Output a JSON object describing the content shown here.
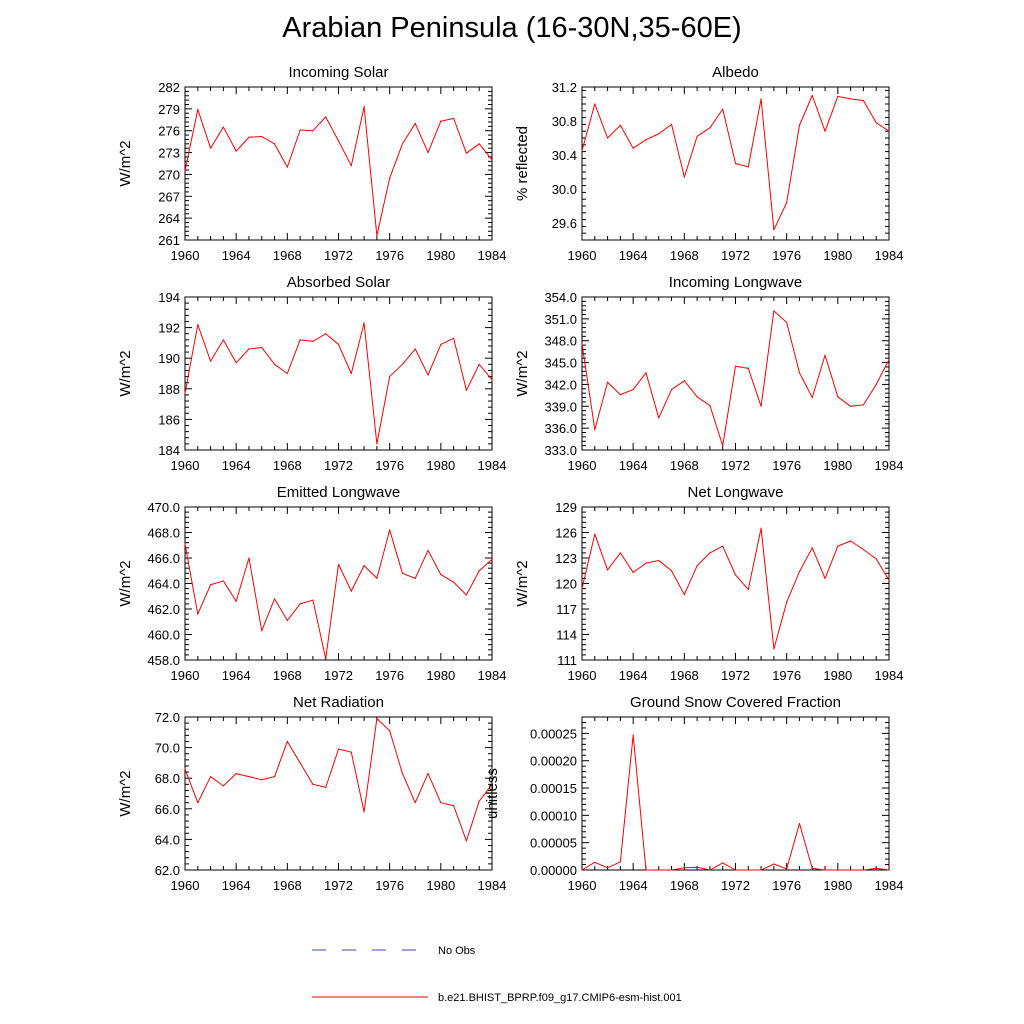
{
  "title": "Arabian Peninsula (16-30N,35-60E)",
  "legend": {
    "items": [
      {
        "label": "No Obs",
        "style": "dashed",
        "color": "#4040c0"
      },
      {
        "label": "b.e21.BHIST_BPRP.f09_g17.CMIP6-esm-hist.001",
        "style": "solid",
        "color": "#ff0000"
      }
    ]
  },
  "chart_data": [
    {
      "type": "line",
      "title": "Incoming Solar",
      "ylabel": "W/m^2",
      "x": [
        1960,
        1961,
        1962,
        1963,
        1964,
        1965,
        1966,
        1967,
        1968,
        1969,
        1970,
        1971,
        1972,
        1973,
        1974,
        1975,
        1976,
        1977,
        1978,
        1979,
        1980,
        1981,
        1982,
        1983,
        1984
      ],
      "xlim": [
        1960,
        1984
      ],
      "xticks": [
        "1960",
        "1964",
        "1968",
        "1972",
        "1976",
        "1980",
        "1984"
      ],
      "ylim": [
        261,
        282
      ],
      "yticks": [
        "261",
        "264",
        "267",
        "270",
        "273",
        "276",
        "279",
        "282"
      ],
      "series": [
        {
          "color": "#ff0000",
          "values": [
            270.5,
            278.9,
            273.6,
            276.5,
            273.2,
            275.1,
            275.2,
            274.2,
            271.0,
            276.1,
            276.0,
            277.9,
            274.6,
            271.2,
            279.3,
            261.6,
            269.5,
            274.2,
            277.0,
            273.0,
            277.3,
            277.7,
            272.9,
            274.2,
            272.0
          ]
        }
      ]
    },
    {
      "type": "line",
      "title": "Albedo",
      "ylabel": "% reflected",
      "x": [
        1960,
        1961,
        1962,
        1963,
        1964,
        1965,
        1966,
        1967,
        1968,
        1969,
        1970,
        1971,
        1972,
        1973,
        1974,
        1975,
        1976,
        1977,
        1978,
        1979,
        1980,
        1981,
        1982,
        1983,
        1984
      ],
      "xlim": [
        1960,
        1984
      ],
      "xticks": [
        "1960",
        "1964",
        "1968",
        "1972",
        "1976",
        "1980",
        "1984"
      ],
      "ylim": [
        29.4,
        31.2
      ],
      "yticks": [
        "29.6",
        "30.0",
        "30.4",
        "30.8",
        "31.2"
      ],
      "series": [
        {
          "color": "#ff0000",
          "values": [
            30.45,
            31.0,
            30.6,
            30.75,
            30.48,
            30.58,
            30.65,
            30.76,
            30.14,
            30.62,
            30.72,
            30.94,
            30.3,
            30.26,
            31.06,
            29.52,
            29.84,
            30.75,
            31.1,
            30.68,
            31.09,
            31.06,
            31.04,
            30.78,
            30.68
          ]
        }
      ]
    },
    {
      "type": "line",
      "title": "Absorbed Solar",
      "ylabel": "W/m^2",
      "x": [
        1960,
        1961,
        1962,
        1963,
        1964,
        1965,
        1966,
        1967,
        1968,
        1969,
        1970,
        1971,
        1972,
        1973,
        1974,
        1975,
        1976,
        1977,
        1978,
        1979,
        1980,
        1981,
        1982,
        1983,
        1984
      ],
      "xlim": [
        1960,
        1984
      ],
      "xticks": [
        "1960",
        "1964",
        "1968",
        "1972",
        "1976",
        "1980",
        "1984"
      ],
      "ylim": [
        184,
        194
      ],
      "yticks": [
        "184",
        "186",
        "188",
        "190",
        "192",
        "194"
      ],
      "series": [
        {
          "color": "#ff0000",
          "values": [
            187.7,
            192.2,
            189.8,
            191.2,
            189.7,
            190.6,
            190.7,
            189.6,
            189.0,
            191.2,
            191.1,
            191.6,
            190.9,
            189.0,
            192.3,
            184.4,
            188.8,
            189.6,
            190.6,
            188.9,
            190.9,
            191.3,
            187.9,
            189.6,
            188.6
          ]
        }
      ]
    },
    {
      "type": "line",
      "title": "Incoming Longwave",
      "ylabel": "W/m^2",
      "x": [
        1960,
        1961,
        1962,
        1963,
        1964,
        1965,
        1966,
        1967,
        1968,
        1969,
        1970,
        1971,
        1972,
        1973,
        1974,
        1975,
        1976,
        1977,
        1978,
        1979,
        1980,
        1981,
        1982,
        1983,
        1984
      ],
      "xlim": [
        1960,
        1984
      ],
      "xticks": [
        "1960",
        "1964",
        "1968",
        "1972",
        "1976",
        "1980",
        "1984"
      ],
      "ylim": [
        333.0,
        354.0
      ],
      "yticks": [
        "333.0",
        "336.0",
        "339.0",
        "342.0",
        "345.0",
        "348.0",
        "351.0",
        "354.0"
      ],
      "series": [
        {
          "color": "#ff0000",
          "values": [
            347.6,
            335.8,
            342.3,
            340.6,
            341.3,
            343.6,
            337.4,
            341.3,
            342.5,
            340.3,
            339.1,
            333.6,
            344.5,
            344.2,
            339.0,
            352.1,
            350.5,
            343.6,
            340.2,
            346.0,
            340.3,
            339.0,
            339.2,
            342.0,
            345.4
          ]
        }
      ]
    },
    {
      "type": "line",
      "title": "Emitted Longwave",
      "ylabel": "W/m^2",
      "x": [
        1960,
        1961,
        1962,
        1963,
        1964,
        1965,
        1966,
        1967,
        1968,
        1969,
        1970,
        1971,
        1972,
        1973,
        1974,
        1975,
        1976,
        1977,
        1978,
        1979,
        1980,
        1981,
        1982,
        1983,
        1984
      ],
      "xlim": [
        1960,
        1984
      ],
      "xticks": [
        "1960",
        "1964",
        "1968",
        "1972",
        "1976",
        "1980",
        "1984"
      ],
      "ylim": [
        458.0,
        470.0
      ],
      "yticks": [
        "458.0",
        "460.0",
        "462.0",
        "464.0",
        "466.0",
        "468.0",
        "470.0"
      ],
      "series": [
        {
          "color": "#ff0000",
          "values": [
            467.1,
            461.6,
            463.9,
            464.2,
            462.6,
            466.0,
            460.3,
            462.8,
            461.1,
            462.4,
            462.7,
            458.1,
            465.5,
            463.4,
            465.4,
            464.4,
            468.2,
            464.8,
            464.4,
            466.6,
            464.7,
            464.1,
            463.1,
            465.0,
            465.9
          ]
        }
      ]
    },
    {
      "type": "line",
      "title": "Net Longwave",
      "ylabel": "W/m^2",
      "x": [
        1960,
        1961,
        1962,
        1963,
        1964,
        1965,
        1966,
        1967,
        1968,
        1969,
        1970,
        1971,
        1972,
        1973,
        1974,
        1975,
        1976,
        1977,
        1978,
        1979,
        1980,
        1981,
        1982,
        1983,
        1984
      ],
      "xlim": [
        1960,
        1984
      ],
      "xticks": [
        "1960",
        "1964",
        "1968",
        "1972",
        "1976",
        "1980",
        "1984"
      ],
      "ylim": [
        111,
        129
      ],
      "yticks": [
        "111",
        "114",
        "117",
        "120",
        "123",
        "126",
        "129"
      ],
      "series": [
        {
          "color": "#ff0000",
          "values": [
            119.4,
            125.8,
            121.6,
            123.6,
            121.3,
            122.4,
            122.7,
            121.5,
            118.7,
            122.1,
            123.6,
            124.4,
            121.0,
            119.3,
            126.5,
            112.3,
            117.8,
            121.4,
            124.2,
            120.6,
            124.4,
            125.0,
            124.0,
            122.9,
            120.4
          ]
        }
      ]
    },
    {
      "type": "line",
      "title": "Net Radiation",
      "ylabel": "W/m^2",
      "x": [
        1960,
        1961,
        1962,
        1963,
        1964,
        1965,
        1966,
        1967,
        1968,
        1969,
        1970,
        1971,
        1972,
        1973,
        1974,
        1975,
        1976,
        1977,
        1978,
        1979,
        1980,
        1981,
        1982,
        1983,
        1984
      ],
      "xlim": [
        1960,
        1984
      ],
      "xticks": [
        "1960",
        "1964",
        "1968",
        "1972",
        "1976",
        "1980",
        "1984"
      ],
      "ylim": [
        62.0,
        72.0
      ],
      "yticks": [
        "62.0",
        "64.0",
        "66.0",
        "68.0",
        "70.0",
        "72.0"
      ],
      "series": [
        {
          "color": "#ff0000",
          "values": [
            68.6,
            66.4,
            68.1,
            67.5,
            68.3,
            68.1,
            67.9,
            68.1,
            70.4,
            69.0,
            67.6,
            67.4,
            69.9,
            69.7,
            65.8,
            71.9,
            71.1,
            68.3,
            66.4,
            68.3,
            66.4,
            66.2,
            63.9,
            66.5,
            67.6
          ]
        }
      ]
    },
    {
      "type": "line",
      "title": "Ground Snow Covered Fraction",
      "ylabel": "unitless",
      "x": [
        1960,
        1961,
        1962,
        1963,
        1964,
        1965,
        1966,
        1967,
        1968,
        1969,
        1970,
        1971,
        1972,
        1973,
        1974,
        1975,
        1976,
        1977,
        1978,
        1979,
        1980,
        1981,
        1982,
        1983,
        1984
      ],
      "xlim": [
        1960,
        1984
      ],
      "xticks": [
        "1960",
        "1964",
        "1968",
        "1972",
        "1976",
        "1980",
        "1984"
      ],
      "ylim": [
        0.0,
        0.00028
      ],
      "yticks": [
        "0.00000",
        "0.00005",
        "0.00010",
        "0.00015",
        "0.00020",
        "0.00025"
      ],
      "series": [
        {
          "color": "#ff0000",
          "values": [
            0.0,
            1.4e-05,
            4e-06,
            1.5e-05,
            0.000247,
            0.0,
            0.0,
            0.0,
            4e-06,
            5e-06,
            0.0,
            1.3e-05,
            0.0,
            0.0,
            0.0,
            1.1e-05,
            2e-06,
            8.5e-05,
            3e-06,
            0.0,
            0.0,
            0.0,
            0.0,
            3e-06,
            0.0
          ]
        }
      ]
    }
  ]
}
